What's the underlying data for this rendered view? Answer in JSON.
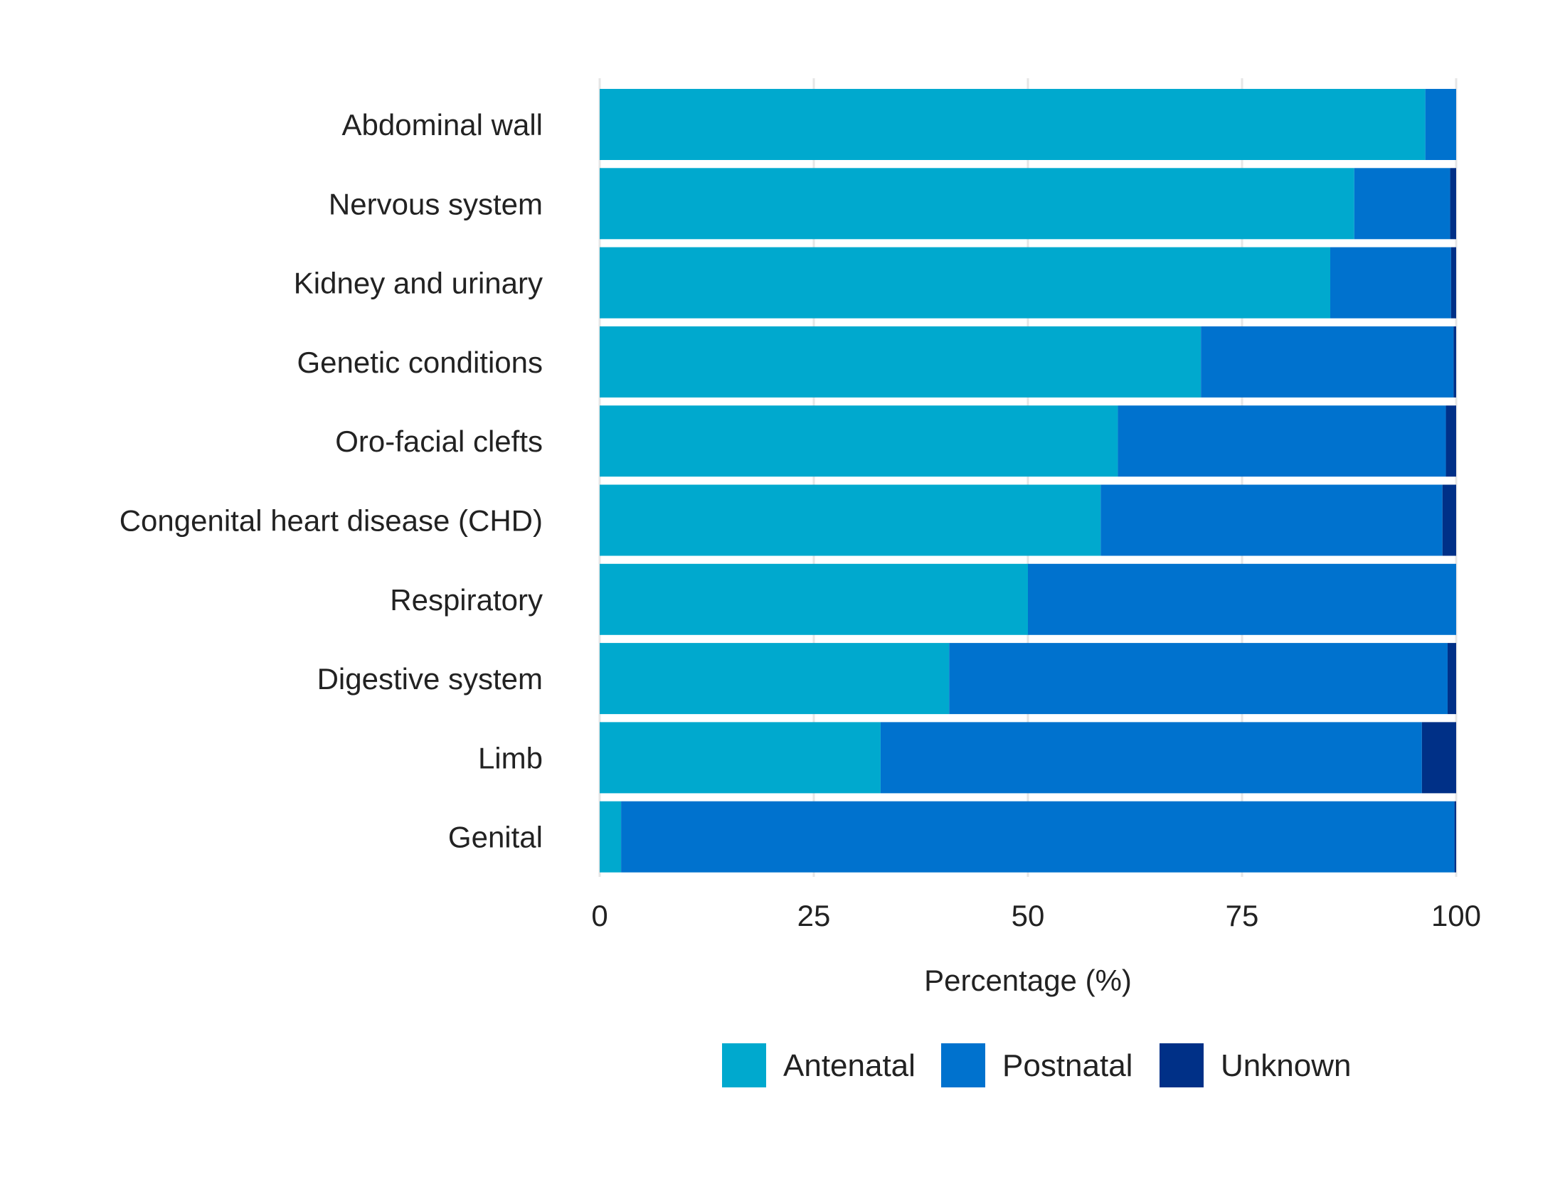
{
  "chart_data": {
    "type": "bar",
    "orientation": "horizontal",
    "stacked": true,
    "categories": [
      "Abdominal wall",
      "Nervous system",
      "Kidney and urinary",
      "Genetic conditions",
      "Oro-facial clefts",
      "Congenital heart disease (CHD)",
      "Respiratory",
      "Digestive system",
      "Limb",
      "Genital"
    ],
    "series": [
      {
        "name": "Antenatal",
        "color": "#00a9ce",
        "values": [
          96.4,
          88.1,
          85.3,
          70.2,
          60.5,
          58.5,
          50.0,
          40.8,
          32.8,
          2.5
        ]
      },
      {
        "name": "Postnatal",
        "color": "#0072ce",
        "values": [
          3.6,
          11.2,
          14.1,
          29.5,
          38.3,
          39.9,
          50.0,
          58.2,
          63.2,
          97.3
        ]
      },
      {
        "name": "Unknown",
        "color": "#003087",
        "values": [
          0.0,
          0.7,
          0.6,
          0.3,
          1.2,
          1.6,
          0.0,
          1.0,
          4.0,
          0.2
        ]
      }
    ],
    "xlabel": "Percentage (%)",
    "ylabel": "",
    "title": "",
    "xlim": [
      0,
      100
    ],
    "xticks": [
      "0",
      "25",
      "50",
      "75",
      "100"
    ],
    "grid": "vertical",
    "legend_position": "bottom"
  }
}
